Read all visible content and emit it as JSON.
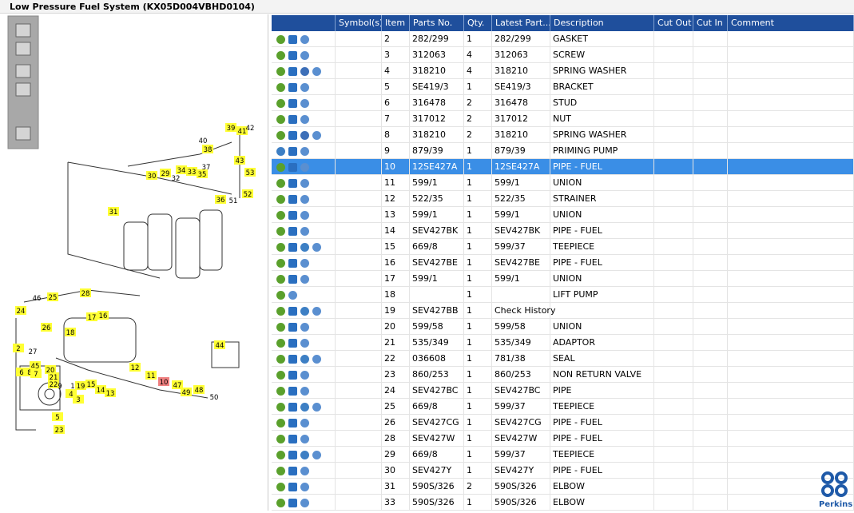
{
  "header": {
    "title": "Low Pressure Fuel System (KX05D004VBHD0104)"
  },
  "table": {
    "columns": [
      "Symbol(s)",
      "Item",
      "Parts No.",
      "Qty.",
      "Latest Part...",
      "Description",
      "Cut Out",
      "Cut In",
      "Comment"
    ],
    "rows": [
      [
        2,
        "282/299",
        1,
        "282/299",
        "GASKET"
      ],
      [
        3,
        "312063",
        4,
        "312063",
        "SCREW"
      ],
      [
        4,
        "318210",
        4,
        "318210",
        "SPRING WASHER"
      ],
      [
        5,
        "SE419/3",
        1,
        "SE419/3",
        "BRACKET"
      ],
      [
        6,
        "316478",
        2,
        "316478",
        "STUD"
      ],
      [
        7,
        "317012",
        2,
        "317012",
        "NUT"
      ],
      [
        8,
        "318210",
        2,
        "318210",
        "SPRING WASHER"
      ],
      [
        9,
        "879/39",
        1,
        "879/39",
        "PRIMING PUMP"
      ],
      [
        10,
        "12SE427A",
        1,
        "12SE427A",
        "PIPE - FUEL"
      ],
      [
        11,
        "599/1",
        1,
        "599/1",
        "UNION"
      ],
      [
        12,
        "522/35",
        1,
        "522/35",
        "STRAINER"
      ],
      [
        13,
        "599/1",
        1,
        "599/1",
        "UNION"
      ],
      [
        14,
        "SEV427BK",
        1,
        "SEV427BK",
        "PIPE - FUEL"
      ],
      [
        15,
        "669/8",
        1,
        "599/37",
        "TEEPIECE"
      ],
      [
        16,
        "SEV427BE",
        1,
        "SEV427BE",
        "PIPE - FUEL"
      ],
      [
        17,
        "599/1",
        1,
        "599/1",
        "UNION"
      ],
      [
        18,
        null,
        1,
        null,
        "LIFT PUMP"
      ],
      [
        19,
        "SEV427BB",
        1,
        "Check History",
        null
      ],
      [
        20,
        "599/58",
        1,
        "599/58",
        "UNION"
      ],
      [
        21,
        "535/349",
        1,
        "535/349",
        "ADAPTOR"
      ],
      [
        22,
        "036608",
        1,
        "781/38",
        "SEAL"
      ],
      [
        23,
        "860/253",
        1,
        "860/253",
        "NON RETURN VALVE"
      ],
      [
        24,
        "SEV427BC",
        1,
        "SEV427BC",
        "PIPE"
      ],
      [
        25,
        "669/8",
        1,
        "599/37",
        "TEEPIECE"
      ],
      [
        26,
        "SEV427CG",
        1,
        "SEV427CG",
        "PIPE - FUEL"
      ],
      [
        28,
        "SEV427W",
        1,
        "SEV427W",
        "PIPE - FUEL"
      ],
      [
        29,
        "669/8",
        1,
        "599/37",
        "TEEPIECE"
      ],
      [
        30,
        "SEV427Y",
        1,
        "SEV427Y",
        "PIPE - FUEL"
      ],
      [
        31,
        "590S/326",
        2,
        "590S/326",
        "ELBOW"
      ],
      [
        33,
        "590S/326",
        1,
        "590S/326",
        "ELBOW"
      ]
    ]
  },
  "diagram": {
    "labels": [
      "39",
      "41",
      "42",
      "40",
      "38",
      "37",
      "43",
      "53",
      "52",
      "51",
      "36",
      "35",
      "33",
      "34",
      "32",
      "29",
      "30",
      "31",
      "28",
      "25",
      "46",
      "24",
      "26",
      "18",
      "17",
      "16",
      "27",
      "2",
      "20",
      "45",
      "6",
      "8",
      "7",
      "21",
      "22",
      "19",
      "15",
      "14",
      "13",
      "12",
      "11",
      "10",
      "47",
      "49",
      "48",
      "50",
      "9",
      "4",
      "3",
      "5",
      "23",
      "1",
      "44"
    ]
  },
  "logo": {
    "text": "Perkins"
  }
}
